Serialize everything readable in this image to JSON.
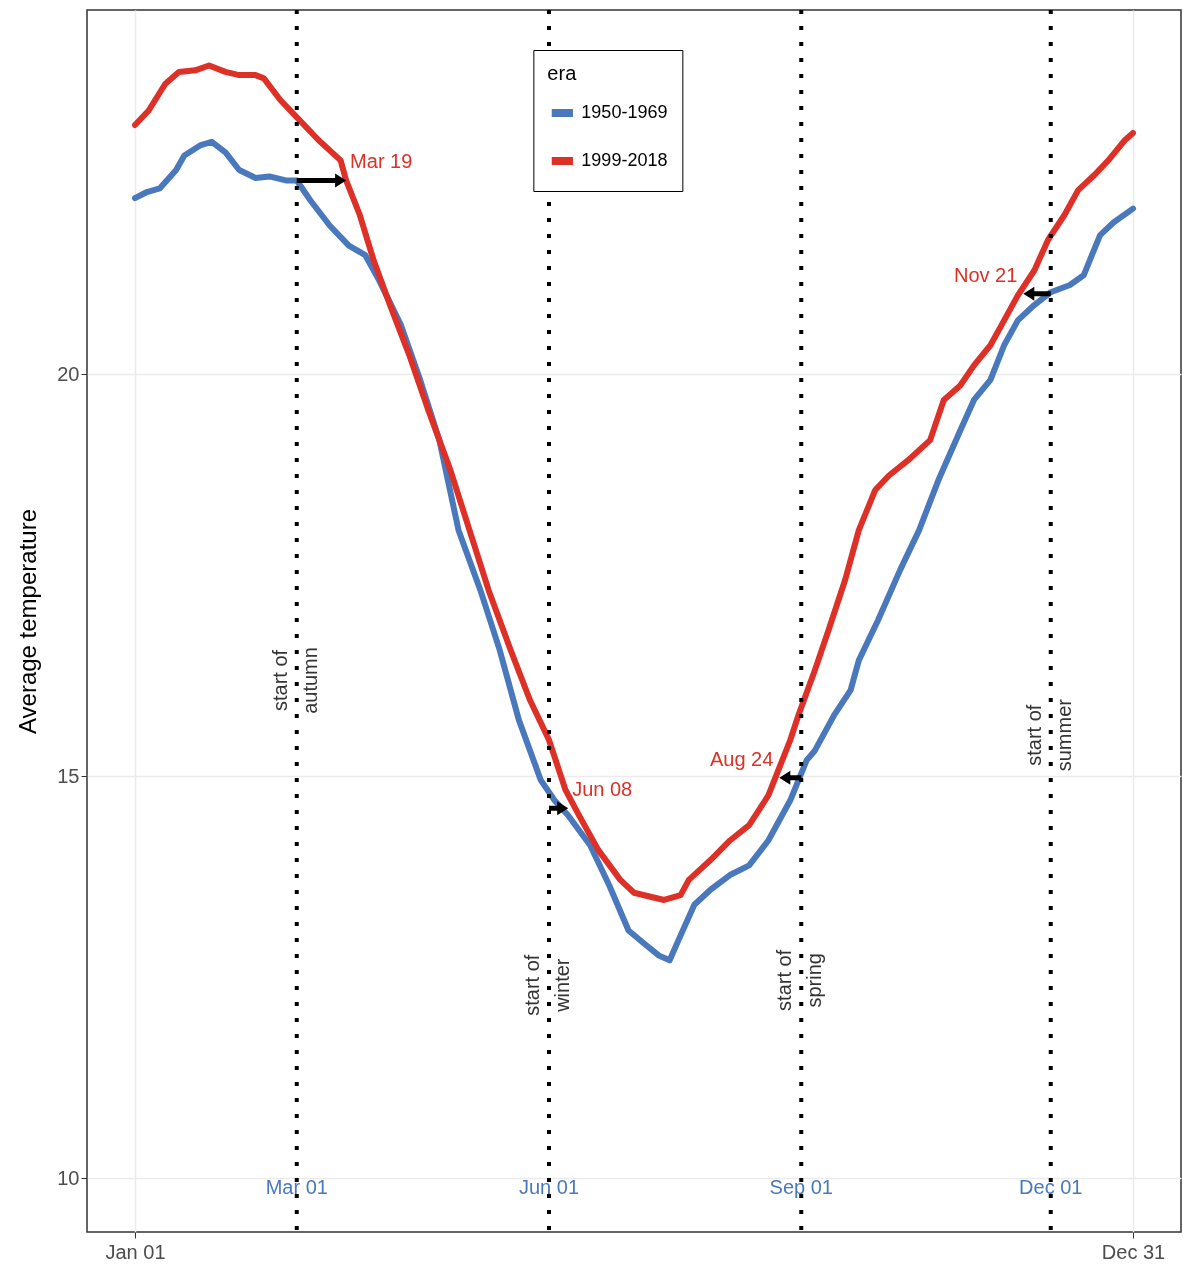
{
  "chart_data": {
    "type": "line",
    "ylabel": "Average temperature",
    "legend_title": "era",
    "xlim": [
      "--01-01",
      "--12-31"
    ],
    "xticks": [
      {
        "value": "--01-01",
        "label": "Jan 01"
      },
      {
        "value": "--12-31",
        "label": "Dec 31"
      }
    ],
    "ylim": [
      9.33,
      24.53
    ],
    "yticks": [
      10,
      15,
      20
    ],
    "grid": true,
    "legend": "top",
    "line_style": "solid",
    "marker": "none",
    "series": [
      {
        "name": "1950-1969",
        "color": "#4a78bd",
        "x": [
          "--01-01",
          "--01-05",
          "--01-10",
          "--01-16",
          "--01-19",
          "--01-25",
          "--01-29",
          "--02-03",
          "--02-08",
          "--02-14",
          "--02-19",
          "--02-25",
          "--03-01",
          "--03-06",
          "--03-13",
          "--03-20",
          "--03-26",
          "--03-31",
          "--04-08",
          "--04-15",
          "--04-22",
          "--04-29",
          "--05-07",
          "--05-14",
          "--05-21",
          "--05-29",
          "--06-03",
          "--06-08",
          "--06-16",
          "--06-23",
          "--06-30",
          "--07-06",
          "--07-11",
          "--07-15",
          "--07-19",
          "--07-24",
          "--07-30",
          "--08-06",
          "--08-13",
          "--08-20",
          "--08-28",
          "--09-03",
          "--09-06",
          "--09-13",
          "--09-19",
          "--09-22",
          "--09-29",
          "--10-07",
          "--10-14",
          "--10-21",
          "--10-29",
          "--11-03",
          "--11-09",
          "--11-14",
          "--11-19",
          "--11-25",
          "--12-01",
          "--12-08",
          "--12-13",
          "--12-19",
          "--12-24",
          "--12-31"
        ],
        "values": [
          22.19,
          22.26,
          22.31,
          22.54,
          22.72,
          22.85,
          22.89,
          22.76,
          22.54,
          22.44,
          22.46,
          22.41,
          22.41,
          22.16,
          21.85,
          21.6,
          21.48,
          21.17,
          20.61,
          19.93,
          19.18,
          18.06,
          17.31,
          16.57,
          15.7,
          14.95,
          14.7,
          14.51,
          14.14,
          13.64,
          13.08,
          12.91,
          12.77,
          12.71,
          13.02,
          13.4,
          13.59,
          13.77,
          13.89,
          14.2,
          14.7,
          15.2,
          15.32,
          15.76,
          16.07,
          16.44,
          16.94,
          17.56,
          18.06,
          18.68,
          19.3,
          19.68,
          19.93,
          20.36,
          20.67,
          20.86,
          21.02,
          21.11,
          21.23,
          21.73,
          21.89,
          22.06
        ]
      },
      {
        "name": "1999-2018",
        "color": "#dd3027",
        "x": [
          "--01-01",
          "--01-06",
          "--01-12",
          "--01-17",
          "--01-23",
          "--01-28",
          "--02-03",
          "--02-08",
          "--02-14",
          "--02-17",
          "--02-23",
          "--03-02",
          "--03-09",
          "--03-17",
          "--03-19",
          "--03-24",
          "--03-29",
          "--04-04",
          "--04-11",
          "--04-18",
          "--04-26",
          "--05-03",
          "--05-10",
          "--05-18",
          "--05-25",
          "--06-01",
          "--06-07",
          "--06-12",
          "--06-19",
          "--06-27",
          "--07-02",
          "--07-08",
          "--07-13",
          "--07-19",
          "--07-22",
          "--07-30",
          "--08-06",
          "--08-13",
          "--08-20",
          "--08-28",
          "--08-31",
          "--09-06",
          "--09-11",
          "--09-17",
          "--09-22",
          "--09-28",
          "--10-03",
          "--10-10",
          "--10-18",
          "--10-23",
          "--10-29",
          "--11-03",
          "--11-09",
          "--11-14",
          "--11-19",
          "--11-25",
          "--11-30",
          "--12-06",
          "--12-11",
          "--12-17",
          "--12-22",
          "--12-28",
          "--12-31"
        ],
        "values": [
          23.1,
          23.28,
          23.61,
          23.76,
          23.78,
          23.84,
          23.76,
          23.72,
          23.72,
          23.68,
          23.41,
          23.16,
          22.91,
          22.66,
          22.41,
          21.98,
          21.42,
          20.86,
          20.24,
          19.55,
          18.81,
          18.06,
          17.31,
          16.57,
          15.95,
          15.45,
          14.83,
          14.51,
          14.08,
          13.71,
          13.55,
          13.5,
          13.46,
          13.52,
          13.71,
          13.96,
          14.2,
          14.39,
          14.76,
          15.45,
          15.76,
          16.32,
          16.82,
          17.44,
          18.06,
          18.56,
          18.74,
          18.93,
          19.18,
          19.68,
          19.86,
          20.11,
          20.36,
          20.67,
          20.98,
          21.29,
          21.67,
          21.98,
          22.29,
          22.48,
          22.66,
          22.91,
          23.0
        ]
      }
    ],
    "ref_lines": [
      {
        "axis": "x",
        "value": "--03-01",
        "label": "Mar 01",
        "color": "#000000",
        "line_style": "dotted"
      },
      {
        "axis": "x",
        "value": "--06-01",
        "label": "Jun 01",
        "color": "#000000",
        "line_style": "dotted"
      },
      {
        "axis": "x",
        "value": "--09-01",
        "label": "Sep 01",
        "color": "#000000",
        "line_style": "dotted"
      },
      {
        "axis": "x",
        "value": "--12-01",
        "label": "Dec 01",
        "color": "#000000",
        "line_style": "dotted"
      }
    ],
    "annotations": [
      {
        "text": "Mar 19",
        "x": "--03-19",
        "y": 22.41
      },
      {
        "text": "Jun 08",
        "x": "--06-08",
        "y": 14.6
      },
      {
        "text": "Aug 24",
        "x": "--08-24",
        "y": 14.98
      },
      {
        "text": "Nov 21",
        "x": "--11-21",
        "y": 21.0
      },
      {
        "text": "start of\nautumn",
        "x": "--03-01",
        "y": 16.19
      },
      {
        "text": "start of\nwinter",
        "x": "--06-01",
        "y": 12.4
      },
      {
        "text": "start of\nspring",
        "x": "--09-01",
        "y": 12.46
      },
      {
        "text": "start of\nsummer",
        "x": "--12-01",
        "y": 15.51
      }
    ]
  }
}
